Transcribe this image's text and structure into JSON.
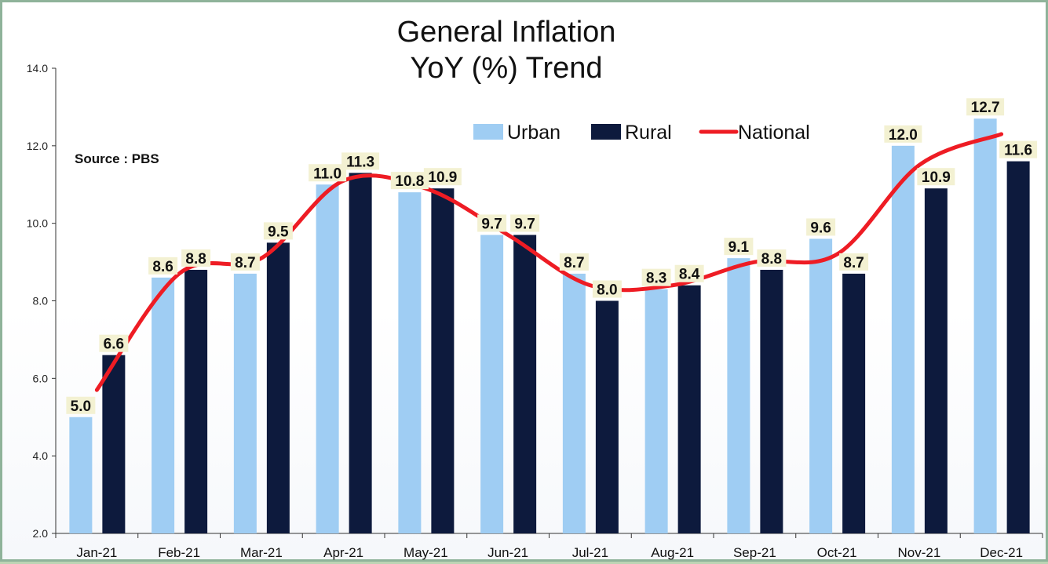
{
  "colors": {
    "urban": "#9fcdf3",
    "rural": "#0d1a3d",
    "national": "#ee1c24",
    "axis": "#333333"
  },
  "chart_data": {
    "type": "bar",
    "title_lines": [
      "General Inflation",
      "YoY (%) Trend"
    ],
    "source": "Source : PBS",
    "categories": [
      "Jan-21",
      "Feb-21",
      "Mar-21",
      "Apr-21",
      "May-21",
      "Jun-21",
      "Jul-21",
      "Aug-21",
      "Sep-21",
      "Oct-21",
      "Nov-21",
      "Dec-21"
    ],
    "series": [
      {
        "name": "Urban",
        "type": "bar",
        "values": [
          5.0,
          8.6,
          8.7,
          11.0,
          10.8,
          9.7,
          8.7,
          8.3,
          9.1,
          9.6,
          12.0,
          12.7
        ],
        "labels": [
          "5.0",
          "8.6",
          "8.7",
          "11.0",
          "10.8",
          "9.7",
          "8.7",
          "8.3",
          "9.1",
          "9.6",
          "12.0",
          "12.7"
        ]
      },
      {
        "name": "Rural",
        "type": "bar",
        "values": [
          6.6,
          8.8,
          9.5,
          11.3,
          10.9,
          9.7,
          8.0,
          8.4,
          8.8,
          8.7,
          10.9,
          11.6
        ],
        "labels": [
          "6.6",
          "8.8",
          "9.5",
          "11.3",
          "10.9",
          "9.7",
          "8.0",
          "8.4",
          "8.8",
          "8.7",
          "10.9",
          "11.6"
        ]
      },
      {
        "name": "National",
        "type": "line",
        "values": [
          5.7,
          8.7,
          9.1,
          11.1,
          10.9,
          9.7,
          8.4,
          8.4,
          9.0,
          9.2,
          11.5,
          12.3
        ]
      }
    ],
    "ylim": [
      2.0,
      14.0
    ],
    "yticks": [
      "2.0",
      "4.0",
      "6.0",
      "8.0",
      "10.0",
      "12.0",
      "14.0"
    ],
    "legend_position": "top-right",
    "grid": false
  }
}
